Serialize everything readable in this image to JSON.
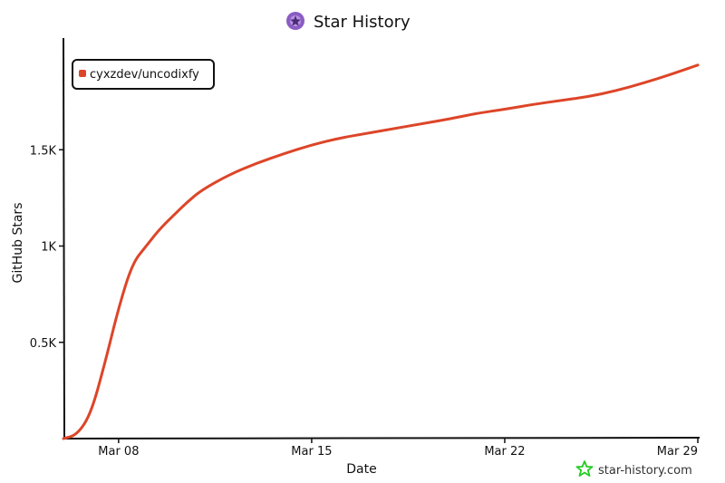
{
  "colors": {
    "series": "#dd4528",
    "axis": "#111111",
    "logo": "#8a5cc4",
    "watermark_star": "#22cc22"
  },
  "header": {
    "title": "Star History",
    "logo_icon": "star-history-logo-icon"
  },
  "watermark": {
    "text": "star-history.com",
    "icon": "star-outline-icon"
  },
  "chart_data": {
    "type": "line",
    "title": "Star History",
    "xlabel": "Date",
    "ylabel": "GitHub Stars",
    "x_ticks": [
      "Mar 08",
      "Mar 15",
      "Mar 22",
      "Mar 29"
    ],
    "y_ticks": [
      "0.5K",
      "1K",
      "1.5K"
    ],
    "y_tick_values": [
      500,
      1000,
      1500
    ],
    "ylim": [
      0,
      2000
    ],
    "xlim": [
      "2025-03-06",
      "2025-03-29"
    ],
    "legend": {
      "placement": "top-left",
      "entries": [
        "cyxzdev/uncodixfy"
      ]
    },
    "grid": false,
    "series": [
      {
        "name": "cyxzdev/uncodixfy",
        "points": [
          [
            "2025-03-06",
            0
          ],
          [
            "2025-03-06T12:00",
            20
          ],
          [
            "2025-03-07",
            130
          ],
          [
            "2025-03-07T12:00",
            390
          ],
          [
            "2025-03-08",
            680
          ],
          [
            "2025-03-08T12:00",
            910
          ],
          [
            "2025-03-09",
            1000
          ],
          [
            "2025-03-09T12:00",
            1090
          ],
          [
            "2025-03-10",
            1160
          ],
          [
            "2025-03-10T12:00",
            1230
          ],
          [
            "2025-03-11",
            1290
          ],
          [
            "2025-03-12",
            1370
          ],
          [
            "2025-03-13",
            1430
          ],
          [
            "2025-03-14",
            1480
          ],
          [
            "2025-03-15",
            1525
          ],
          [
            "2025-03-16",
            1560
          ],
          [
            "2025-03-17",
            1585
          ],
          [
            "2025-03-18",
            1610
          ],
          [
            "2025-03-19",
            1635
          ],
          [
            "2025-03-20",
            1660
          ],
          [
            "2025-03-21",
            1690
          ],
          [
            "2025-03-22",
            1710
          ],
          [
            "2025-03-23",
            1735
          ],
          [
            "2025-03-24",
            1755
          ],
          [
            "2025-03-25",
            1775
          ],
          [
            "2025-03-26",
            1805
          ],
          [
            "2025-03-27",
            1845
          ],
          [
            "2025-03-28",
            1890
          ],
          [
            "2025-03-29",
            1940
          ]
        ]
      }
    ]
  }
}
